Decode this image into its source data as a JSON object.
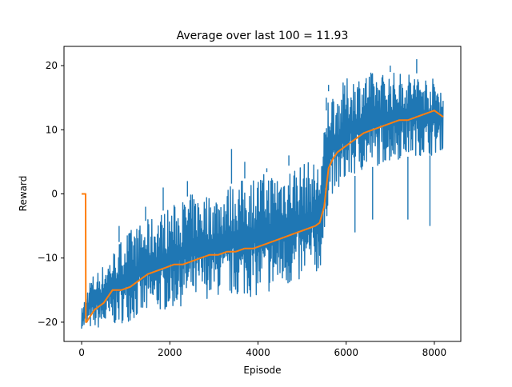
{
  "chart_data": {
    "type": "line",
    "title": "Average over last 100 = 11.93",
    "xlabel": "Episode",
    "ylabel": "Reward",
    "xlim": [
      -400,
      8600
    ],
    "ylim": [
      -23,
      23
    ],
    "x_ticks": [
      0,
      2000,
      4000,
      6000,
      8000
    ],
    "y_ticks": [
      -20,
      -10,
      0,
      10,
      20
    ],
    "x_tick_labels": [
      "0",
      "2000",
      "4000",
      "6000",
      "8000"
    ],
    "y_tick_labels": [
      "−20",
      "−10",
      "0",
      "10",
      "20"
    ],
    "grid": false,
    "legend": "none",
    "series": [
      {
        "kind": "raw-episode-reward-band",
        "color": "#1f77b4",
        "x": [
          0,
          200,
          500,
          1000,
          1500,
          2000,
          2500,
          3000,
          3500,
          4000,
          4500,
          5000,
          5400,
          5500,
          5600,
          5800,
          6000,
          6500,
          7000,
          7500,
          8000,
          8200
        ],
        "low": [
          -21,
          -21,
          -21,
          -20,
          -19,
          -18,
          -17,
          -16,
          -16,
          -16,
          -15,
          -14,
          -12,
          -10,
          0,
          0,
          2,
          4,
          5,
          6,
          6,
          7
        ],
        "high": [
          -18,
          -13,
          -11,
          -6,
          -4,
          -2,
          0,
          0,
          2,
          3,
          4,
          5,
          5,
          10,
          16,
          16,
          18,
          19,
          19,
          19,
          18,
          17
        ],
        "spikes": [
          {
            "x": 850,
            "y": -5
          },
          {
            "x": 1450,
            "y": -2
          },
          {
            "x": 1850,
            "y": 1
          },
          {
            "x": 2400,
            "y": 2
          },
          {
            "x": 3400,
            "y": 7
          },
          {
            "x": 3700,
            "y": 5
          },
          {
            "x": 4200,
            "y": 4
          },
          {
            "x": 4700,
            "y": 6
          },
          {
            "x": 5550,
            "y": 15
          },
          {
            "x": 5600,
            "y": 17
          },
          {
            "x": 7000,
            "y": 20
          },
          {
            "x": 7600,
            "y": 21
          },
          {
            "x": 6200,
            "y": -6
          },
          {
            "x": 6600,
            "y": -4
          },
          {
            "x": 7400,
            "y": -4
          },
          {
            "x": 7900,
            "y": -5
          }
        ]
      },
      {
        "kind": "moving-average-100",
        "color": "#ff7f0e",
        "x": [
          0,
          90,
          95,
          110,
          200,
          300,
          500,
          700,
          900,
          1100,
          1300,
          1500,
          1700,
          1900,
          2100,
          2300,
          2500,
          2700,
          2900,
          3100,
          3300,
          3500,
          3700,
          3900,
          4100,
          4300,
          4500,
          4700,
          4900,
          5100,
          5300,
          5400,
          5500,
          5550,
          5600,
          5700,
          5800,
          5900,
          6000,
          6200,
          6400,
          6600,
          6800,
          7000,
          7200,
          7400,
          7600,
          7800,
          8000,
          8100,
          8200
        ],
        "y": [
          0,
          0,
          -20,
          -20,
          -19,
          -18,
          -17,
          -15,
          -15,
          -14.5,
          -13.5,
          -12.5,
          -12,
          -11.5,
          -11,
          -11,
          -10.5,
          -10,
          -9.5,
          -9.5,
          -9,
          -9,
          -8.5,
          -8.5,
          -8,
          -7.5,
          -7,
          -6.5,
          -6,
          -5.5,
          -5,
          -4.5,
          -2,
          1,
          4,
          5.5,
          6.5,
          7,
          7.5,
          8.5,
          9.5,
          10,
          10.5,
          11,
          11.5,
          11.5,
          12,
          12.5,
          13,
          12.5,
          12
        ]
      }
    ]
  }
}
